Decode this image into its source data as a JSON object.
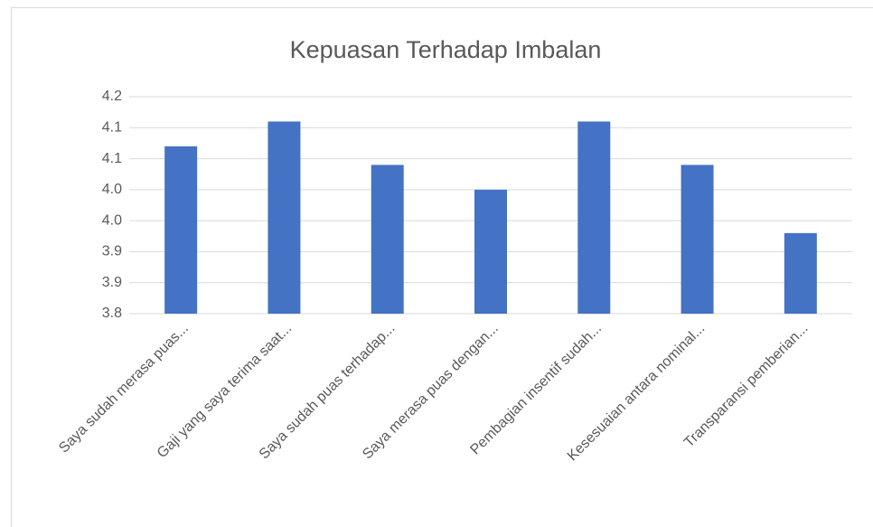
{
  "chart_data": {
    "type": "bar",
    "title": "Kepuasan Terhadap Imbalan",
    "categories": [
      "Saya sudah merasa puas...",
      "Gaji yang saya terima saat...",
      "Saya sudah puas terhadap...",
      "Saya merasa puas dengan...",
      "Pembagian insentif sudah...",
      "Kesesuaian antara nominal...",
      "Transparansi pemberian..."
    ],
    "values": [
      4.07,
      4.11,
      4.04,
      4.0,
      4.11,
      4.04,
      3.93
    ],
    "color": "#4472c4",
    "ylim": [
      3.8,
      4.15
    ],
    "yticks": [
      3.8,
      {
        "value": 3.85,
        "label": "3.9"
      },
      3.9,
      {
        "value": 3.95,
        "label": "4.0"
      },
      {
        "value": 4.0,
        "label": "4.0"
      },
      {
        "value": 4.05,
        "label": "4.1"
      },
      4.1,
      {
        "value": 4.15,
        "label": "4.2"
      }
    ],
    "grid": true
  }
}
